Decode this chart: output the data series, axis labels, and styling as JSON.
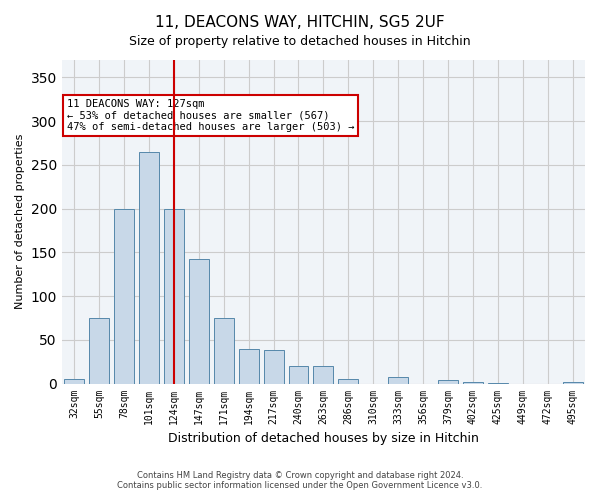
{
  "title_line1": "11, DEACONS WAY, HITCHIN, SG5 2UF",
  "title_line2": "Size of property relative to detached houses in Hitchin",
  "xlabel": "Distribution of detached houses by size in Hitchin",
  "ylabel": "Number of detached properties",
  "categories": [
    "32sqm",
    "55sqm",
    "78sqm",
    "101sqm",
    "124sqm",
    "147sqm",
    "171sqm",
    "194sqm",
    "217sqm",
    "240sqm",
    "263sqm",
    "286sqm",
    "310sqm",
    "333sqm",
    "356sqm",
    "379sqm",
    "402sqm",
    "425sqm",
    "449sqm",
    "472sqm",
    "495sqm"
  ],
  "values": [
    5,
    75,
    200,
    265,
    200,
    143,
    75,
    40,
    38,
    20,
    20,
    5,
    0,
    7,
    0,
    4,
    2,
    1,
    0,
    0,
    2
  ],
  "bar_color": "#c8d8e8",
  "bar_edge_color": "#5588aa",
  "highlight_index": 4,
  "highlight_line_color": "#cc0000",
  "annotation_text": "11 DEACONS WAY: 127sqm\n← 53% of detached houses are smaller (567)\n47% of semi-detached houses are larger (503) →",
  "annotation_box_color": "#ffffff",
  "annotation_box_edge_color": "#cc0000",
  "ylim": [
    0,
    370
  ],
  "yticks": [
    0,
    50,
    100,
    150,
    200,
    250,
    300,
    350
  ],
  "grid_color": "#cccccc",
  "background_color": "#f0f4f8",
  "footer_line1": "Contains HM Land Registry data © Crown copyright and database right 2024.",
  "footer_line2": "Contains public sector information licensed under the Open Government Licence v3.0."
}
